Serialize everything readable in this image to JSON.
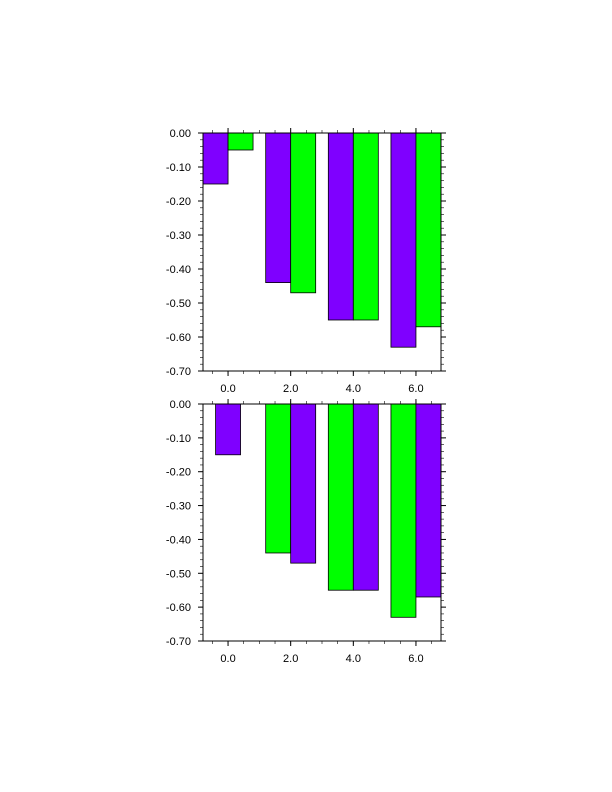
{
  "chart_data": [
    {
      "type": "bar",
      "x": [
        0.0,
        2.0,
        4.0,
        6.0
      ],
      "xlim": [
        -0.8,
        6.8
      ],
      "ylim": [
        -0.7,
        0.0
      ],
      "xticks": [
        "0.0",
        "2.0",
        "4.0",
        "6.0"
      ],
      "yticks": [
        "0.00",
        "-0.10",
        "-0.20",
        "-0.30",
        "-0.40",
        "-0.50",
        "-0.60",
        "-0.70"
      ],
      "series": [
        {
          "color": "#7f00ff",
          "values": [
            -0.15,
            -0.44,
            -0.55,
            -0.63
          ]
        },
        {
          "color": "#00ff00",
          "values": [
            -0.05,
            -0.47,
            -0.55,
            -0.57
          ]
        }
      ]
    },
    {
      "type": "bar",
      "x": [
        0.0,
        2.0,
        4.0,
        6.0
      ],
      "xlim": [
        -0.8,
        6.8
      ],
      "ylim": [
        -0.7,
        0.0
      ],
      "xticks": [
        "0.0",
        "2.0",
        "4.0",
        "6.0"
      ],
      "yticks": [
        "0.00",
        "-0.10",
        "-0.20",
        "-0.30",
        "-0.40",
        "-0.50",
        "-0.60",
        "-0.70"
      ],
      "series": [
        {
          "color": "#7f00ff",
          "values": [
            -0.15,
            null,
            null,
            null
          ]
        },
        {
          "color": "#00ff00",
          "values": [
            null,
            -0.44,
            -0.55,
            -0.63
          ]
        },
        {
          "color": "#7f00ff",
          "values": [
            null,
            -0.47,
            -0.55,
            -0.57
          ]
        }
      ]
    }
  ]
}
